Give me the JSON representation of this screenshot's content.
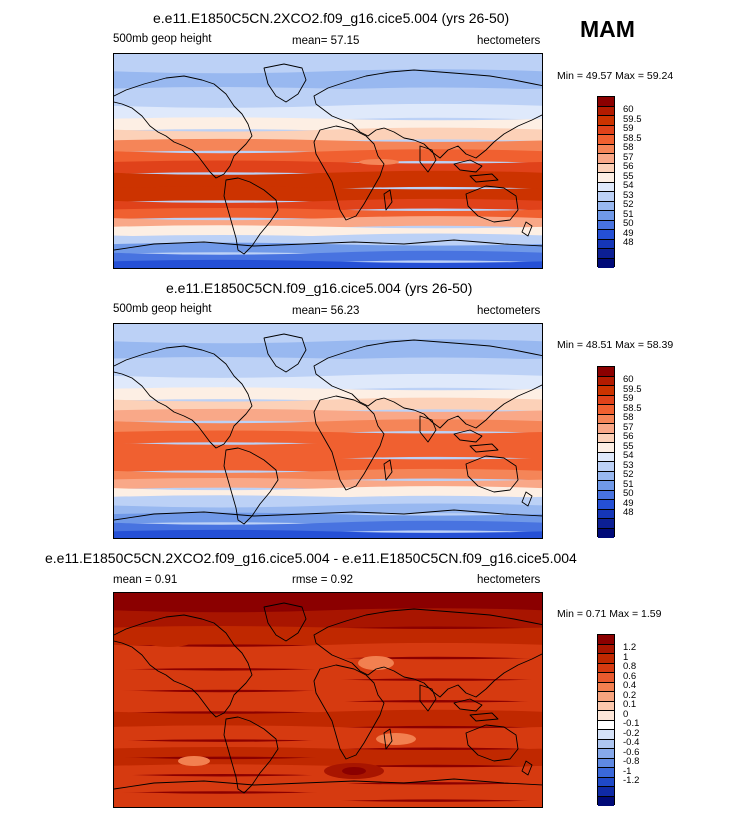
{
  "season": "MAM",
  "panels": [
    {
      "id": "p1",
      "title": "e.e11.E1850C5CN.2XCO2.f09_g16.cice5.004 (yrs 26-50)",
      "left_label": "500mb geop height",
      "center_label": "mean=  57.15",
      "units": "hectometers",
      "minmax": "Min =  49.57 Max =  59.24",
      "kind": "abs",
      "colorbar": {
        "colors": [
          "#8b0000",
          "#b31b00",
          "#cc3300",
          "#e0421a",
          "#f06030",
          "#f58558",
          "#f9a888",
          "#fcd1b8",
          "#fdefe4",
          "#dfe9fb",
          "#bcd1f6",
          "#98b8f0",
          "#7099e8",
          "#4873e0",
          "#2550d6",
          "#1536b8",
          "#0c1f94",
          "#000a78"
        ],
        "labels": [
          "60",
          "59.5",
          "59",
          "58.5",
          "58",
          "57",
          "56",
          "55",
          "54",
          "53",
          "52",
          "51",
          "50",
          "49",
          "48"
        ]
      }
    },
    {
      "id": "p2",
      "title": "e.e11.E1850C5CN.f09_g16.cice5.004 (yrs 26-50)",
      "left_label": "500mb geop height",
      "center_label": "mean=  56.23",
      "units": "hectometers",
      "minmax": "Min =  48.51 Max =  58.39",
      "kind": "abs",
      "colorbar": {
        "colors": [
          "#8b0000",
          "#b31b00",
          "#cc3300",
          "#e0421a",
          "#f06030",
          "#f58558",
          "#f9a888",
          "#fcd1b8",
          "#fdefe4",
          "#dfe9fb",
          "#bcd1f6",
          "#98b8f0",
          "#7099e8",
          "#4873e0",
          "#2550d6",
          "#1536b8",
          "#0c1f94",
          "#000a78"
        ],
        "labels": [
          "60",
          "59.5",
          "59",
          "58.5",
          "58",
          "57",
          "56",
          "55",
          "54",
          "53",
          "52",
          "51",
          "50",
          "49",
          "48"
        ]
      }
    },
    {
      "id": "p3",
      "title": "e.e11.E1850C5CN.2XCO2.f09_g16.cice5.004 - e.e11.E1850C5CN.f09_g16.cice5.004",
      "left_label": "mean =   0.91",
      "center_label": "rmse =   0.92",
      "units": "hectometers",
      "minmax": "Min =   0.71 Max =   1.59",
      "kind": "diff",
      "colorbar": {
        "colors": [
          "#8b0000",
          "#a81500",
          "#c02800",
          "#d63a10",
          "#e85a2e",
          "#f28050",
          "#f7a47e",
          "#fbc8ad",
          "#fde6d8",
          "#ffffff",
          "#d5e2f8",
          "#aec6f1",
          "#86a8ea",
          "#5f89e2",
          "#3a68da",
          "#1f49c8",
          "#0f2aa6",
          "#000a78"
        ],
        "labels": [
          "1.2",
          "1",
          "0.8",
          "0.6",
          "0.4",
          "0.2",
          "0.1",
          "0",
          "-0.1",
          "-0.2",
          "-0.4",
          "-0.6",
          "-0.8",
          "-1",
          "-1.2"
        ]
      }
    }
  ]
}
